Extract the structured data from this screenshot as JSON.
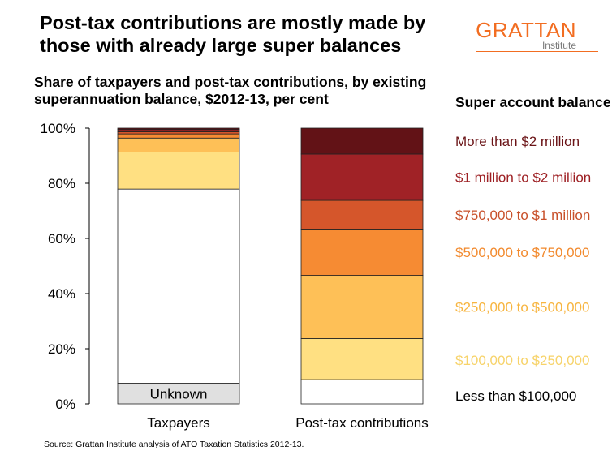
{
  "header": {
    "title": "Post-tax contributions are mostly made by those with already large super balances",
    "logo_main": "GRATTAN",
    "logo_sub": "Institute"
  },
  "chart_data": {
    "type": "bar",
    "stacked": true,
    "title": "Share of taxpayers and post-tax contributions, by existing superannuation balance, $2012-13, per cent",
    "categories": [
      "Taxpayers",
      "Post-tax contributions"
    ],
    "ylim": [
      0,
      100
    ],
    "yticks": [
      "0%",
      "20%",
      "40%",
      "60%",
      "80%",
      "100%"
    ],
    "legend_title": "Super account balance",
    "legend_placement": "right",
    "grid": false,
    "series": [
      {
        "name": "Unknown",
        "color": "#e0e0e0",
        "values": [
          7.5,
          0
        ]
      },
      {
        "name": "Less than $100,000",
        "color": "#ffffff",
        "values": [
          70.4,
          8.8
        ]
      },
      {
        "name": "$100,000 to $250,000",
        "color": "#ffe082",
        "values": [
          13.4,
          14.9
        ]
      },
      {
        "name": "$250,000 to $500,000",
        "color": "#fec057",
        "values": [
          5.1,
          22.9
        ]
      },
      {
        "name": "$500,000 to $750,000",
        "color": "#f68b33",
        "values": [
          1.5,
          16.8
        ]
      },
      {
        "name": "$750,000 to $1 million",
        "color": "#d5562b",
        "values": [
          0.8,
          10.4
        ]
      },
      {
        "name": "$1 million to $2 million",
        "color": "#a02226",
        "values": [
          0.8,
          16.8
        ]
      },
      {
        "name": "More than $2 million",
        "color": "#621216",
        "values": [
          0.5,
          9.4
        ]
      }
    ],
    "legend_colors": [
      "#000000",
      "#f7d36a",
      "#f7b540",
      "#f28a2e",
      "#c8502a",
      "#9d1f23",
      "#6b1417"
    ],
    "inline_label": {
      "series": "Unknown",
      "category": "Taxpayers",
      "text": "Unknown"
    }
  },
  "footer": {
    "source": "Source: Grattan Institute analysis of ATO Taxation Statistics 2012-13."
  }
}
